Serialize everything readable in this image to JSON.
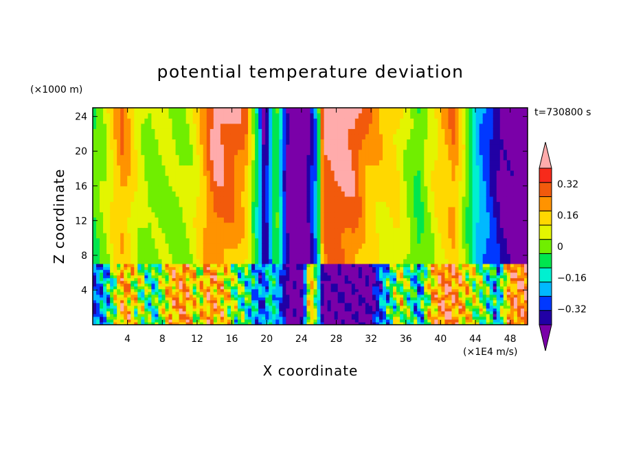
{
  "chart_data": {
    "type": "heatmap",
    "title": "potential temperature deviation",
    "xlabel": "X coordinate",
    "ylabel": "Z coordinate",
    "x_unit": "(×1E4 m/s)",
    "y_unit": "(×1000 m)",
    "time_label": "t=730800 s",
    "xlim": [
      0,
      50
    ],
    "ylim": [
      0,
      25
    ],
    "x_ticks": [
      4,
      8,
      12,
      16,
      20,
      24,
      28,
      32,
      36,
      40,
      44,
      48
    ],
    "y_ticks": [
      4,
      8,
      12,
      16,
      20,
      24
    ],
    "colorbar": {
      "levels": [
        -0.4,
        -0.32,
        -0.24,
        -0.16,
        -0.08,
        0,
        0.08,
        0.16,
        0.24,
        0.32,
        0.4
      ],
      "colors": [
        "#7a00a8",
        "#2100a5",
        "#0038ff",
        "#00b9ff",
        "#00f0d0",
        "#00e64e",
        "#70ee00",
        "#e3f500",
        "#ffd800",
        "#ff9300",
        "#f25a0c",
        "#f72a1b",
        "#ffabab"
      ],
      "labels": [
        {
          "value": 0.32,
          "text": "0.32"
        },
        {
          "value": 0.16,
          "text": "0.16"
        },
        {
          "value": 0,
          "text": "0"
        },
        {
          "value": -0.16,
          "text": "−0.16"
        },
        {
          "value": -0.32,
          "text": "−0.32"
        }
      ],
      "extend": "both"
    },
    "upper_profile": {
      "z_range": [
        7,
        25
      ],
      "x": [
        0,
        1.5,
        2.5,
        3.5,
        5,
        6.5,
        8.5,
        10,
        11.5,
        13,
        14,
        15.5,
        17.5,
        19,
        19.6,
        20.2,
        21,
        21.5,
        22.5,
        24.5,
        25.8,
        26.5,
        28,
        30,
        31.5,
        33.5,
        35,
        36.5,
        37.5,
        38.5,
        40,
        41.5,
        42.5,
        44,
        45.5,
        47,
        48,
        50
      ],
      "top": [
        0.02,
        0.1,
        0.24,
        0.34,
        0.16,
        0.06,
        0.1,
        0.06,
        0.12,
        0.3,
        0.45,
        0.45,
        0.36,
        -0.1,
        -0.4,
        -0.3,
        0.05,
        -0.12,
        -0.45,
        -0.45,
        -0.2,
        0.45,
        0.45,
        0.45,
        0.32,
        0.22,
        0.2,
        0.06,
        0.0,
        0.1,
        0.24,
        0.34,
        0.18,
        -0.16,
        -0.3,
        -0.45,
        -0.45,
        -0.45
      ],
      "bottom": [
        0.0,
        0.06,
        0.14,
        0.2,
        0.1,
        0.04,
        0.06,
        0.06,
        0.1,
        0.22,
        0.28,
        0.24,
        0.14,
        -0.08,
        -0.36,
        -0.3,
        0.02,
        -0.1,
        -0.45,
        -0.45,
        -0.2,
        0.26,
        0.34,
        0.28,
        0.16,
        0.12,
        0.14,
        0.04,
        -0.02,
        0.06,
        0.14,
        0.18,
        0.08,
        -0.12,
        -0.26,
        -0.36,
        -0.4,
        -0.45
      ]
    },
    "lower_profile": {
      "z_range": [
        0,
        7
      ],
      "x": [
        0,
        2,
        3.5,
        5,
        7,
        9,
        10.5,
        12,
        13.5,
        15,
        16.5,
        18,
        19.5,
        20.5,
        22.5,
        24.2,
        25,
        26.5,
        29,
        32,
        34,
        35.5,
        37.5,
        39,
        40.5,
        42,
        43.5,
        45,
        46.5,
        48,
        50
      ],
      "mean": [
        -0.3,
        -0.1,
        0.3,
        0.1,
        -0.1,
        0.24,
        0.32,
        0.1,
        0.3,
        0.2,
        0.0,
        -0.1,
        -0.3,
        -0.08,
        -0.42,
        -0.42,
        0.3,
        -0.42,
        -0.42,
        -0.42,
        -0.12,
        0.1,
        -0.2,
        0.2,
        0.36,
        0.28,
        0.1,
        0.0,
        -0.2,
        0.3,
        0.36
      ],
      "amplitude": [
        0.1,
        0.28,
        0.2,
        0.28,
        0.24,
        0.22,
        0.16,
        0.26,
        0.18,
        0.24,
        0.26,
        0.22,
        0.14,
        0.16,
        0.04,
        0.04,
        0.18,
        0.04,
        0.06,
        0.06,
        0.26,
        0.26,
        0.24,
        0.24,
        0.16,
        0.2,
        0.26,
        0.24,
        0.26,
        0.18,
        0.14
      ]
    }
  }
}
